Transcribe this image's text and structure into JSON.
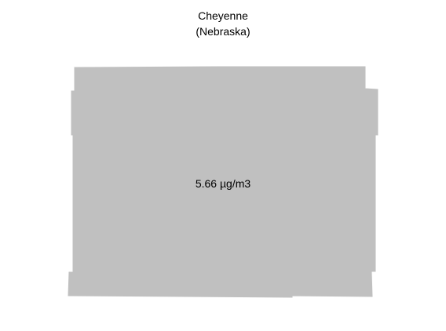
{
  "map": {
    "title_line_1": "Cheyenne",
    "title_line_2": "(Nebraska)",
    "region_fill_color": "#c0c0c0",
    "value_text": "5.66 µg/m3"
  }
}
